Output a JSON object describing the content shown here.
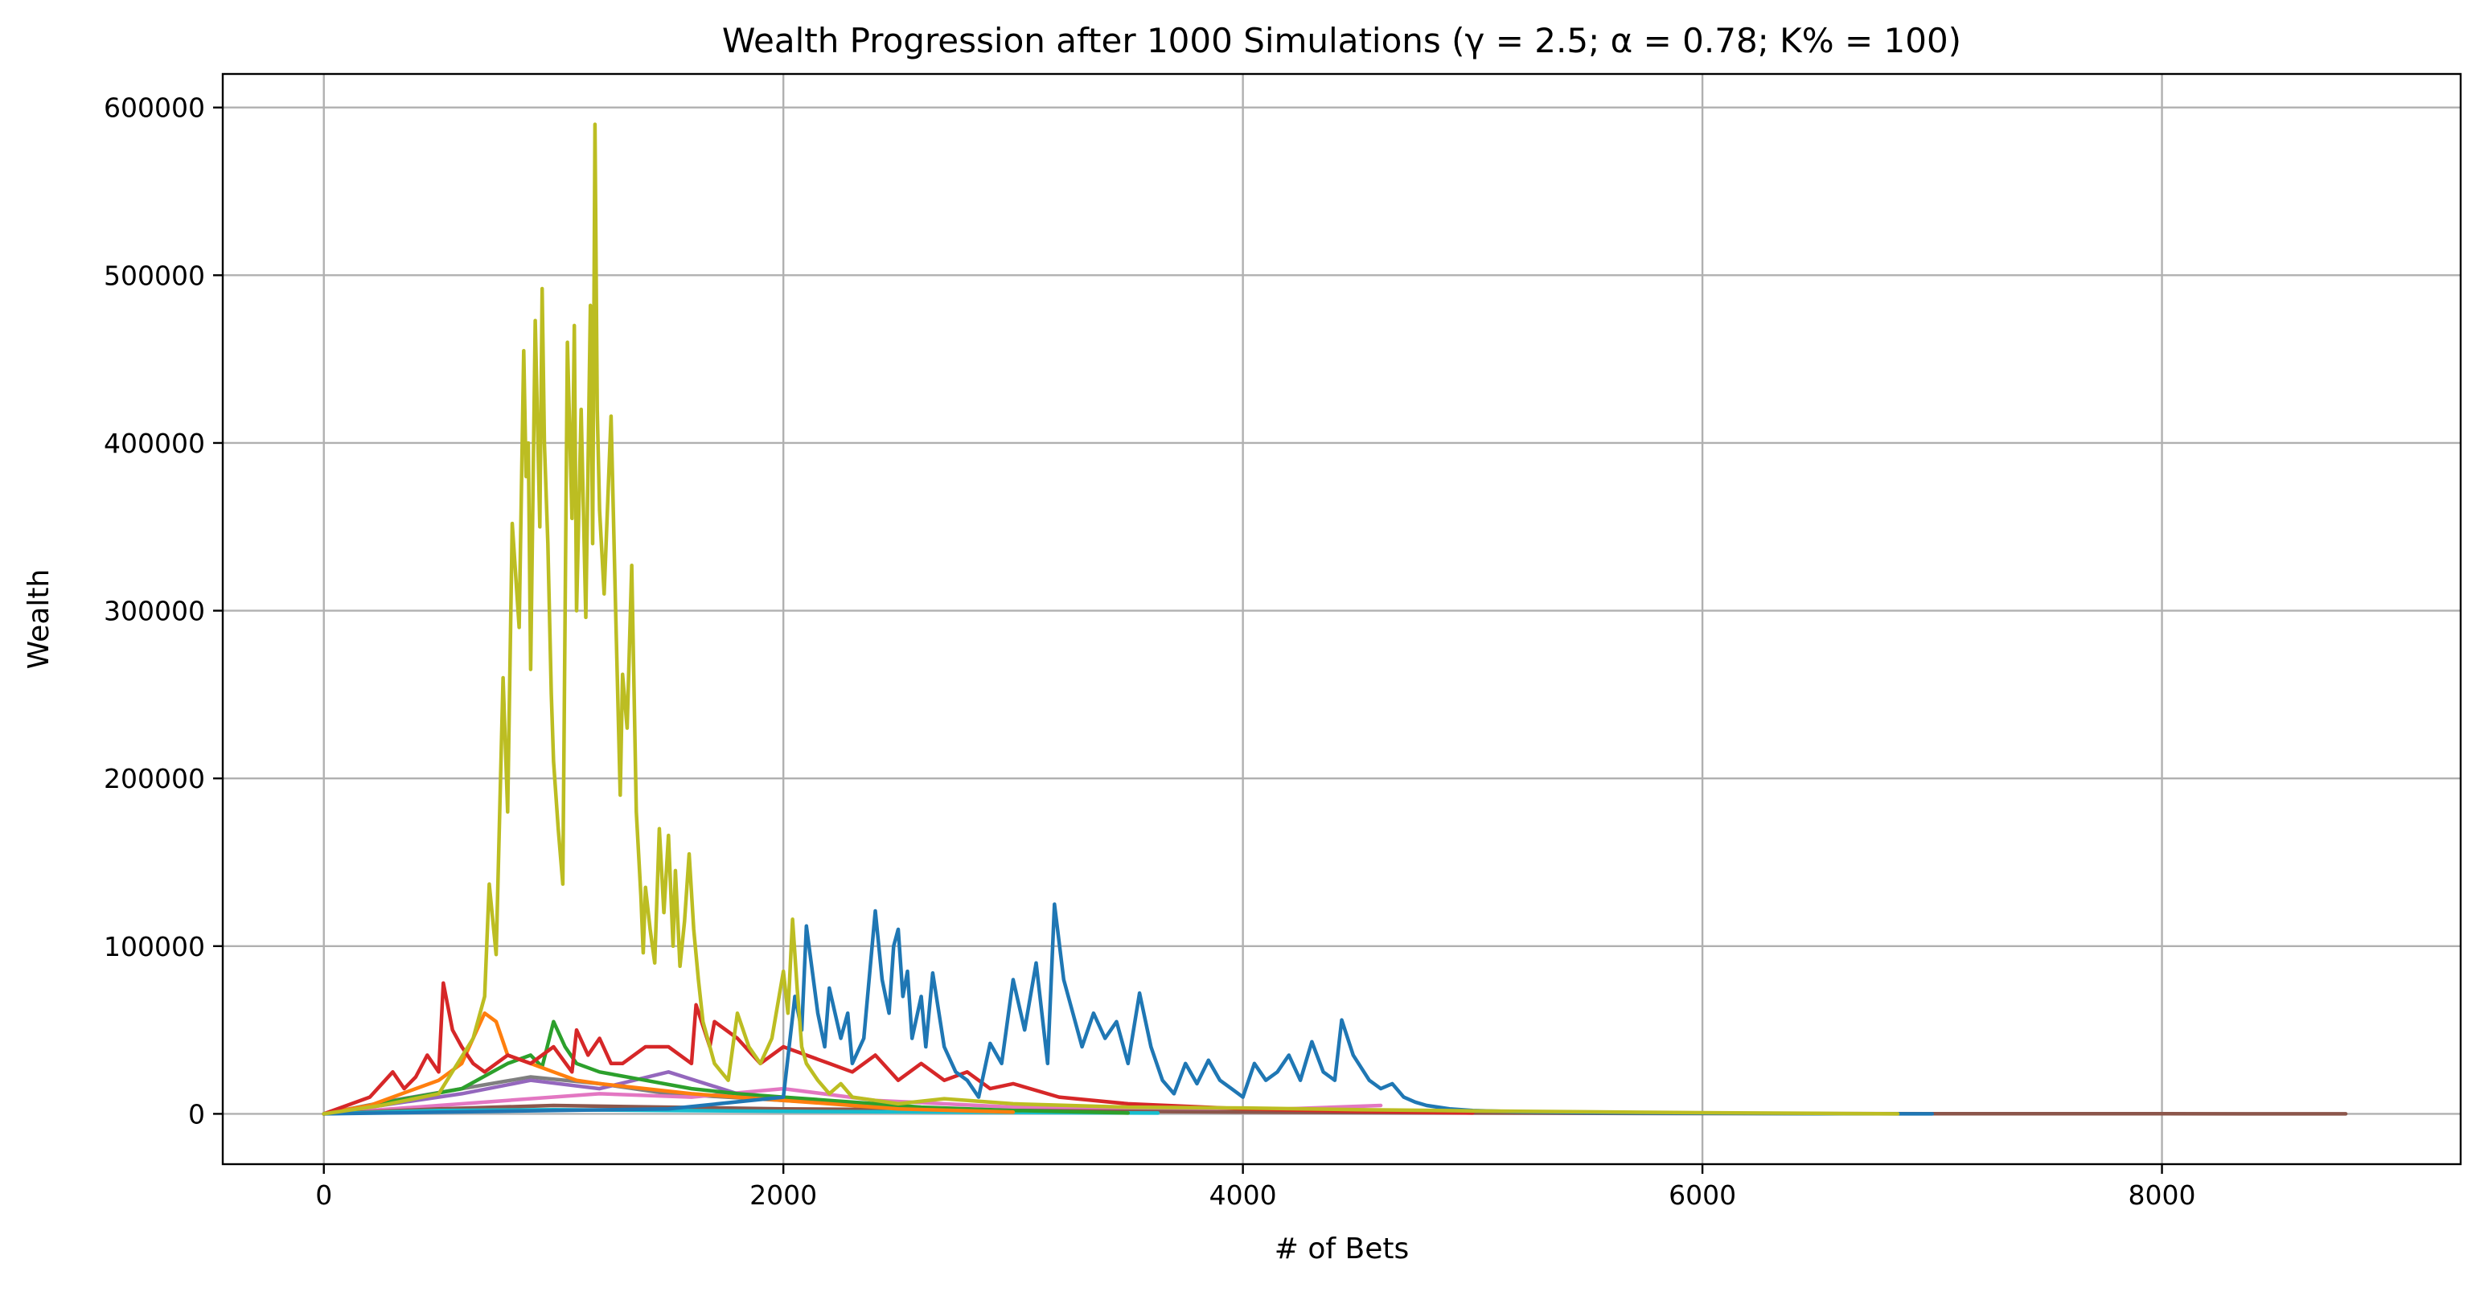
{
  "chart_data": {
    "type": "line",
    "title": "Wealth Progression after 1000 Simulations (γ = 2.5; α = 0.78; K% = 100)",
    "xlabel": "# of Bets",
    "ylabel": "Wealth",
    "xlim": [
      -440,
      9300
    ],
    "ylim": [
      -30000,
      620000
    ],
    "xticks": [
      0,
      2000,
      4000,
      6000,
      8000
    ],
    "yticks": [
      0,
      100000,
      200000,
      300000,
      400000,
      500000,
      600000
    ],
    "xtick_labels": [
      "0",
      "2000",
      "4000",
      "6000",
      "8000"
    ],
    "ytick_labels": [
      "0",
      "100000",
      "200000",
      "300000",
      "400000",
      "500000",
      "600000"
    ],
    "grid": true,
    "legend": "none",
    "series": [
      {
        "color": "#bcbd22",
        "x": [
          0,
          250,
          500,
          650,
          700,
          720,
          750,
          780,
          800,
          820,
          850,
          870,
          880,
          890,
          900,
          920,
          940,
          950,
          960,
          975,
          990,
          1000,
          1020,
          1040,
          1060,
          1080,
          1090,
          1100,
          1120,
          1140,
          1160,
          1170,
          1180,
          1190,
          1200,
          1220,
          1250,
          1270,
          1290,
          1300,
          1320,
          1340,
          1360,
          1380,
          1390,
          1400,
          1420,
          1440,
          1460,
          1480,
          1500,
          1520,
          1530,
          1550,
          1570,
          1590,
          1610,
          1630,
          1650,
          1670,
          1700,
          1730,
          1760,
          1800,
          1850,
          1900,
          1950,
          2000,
          2020,
          2040,
          2060,
          2080,
          2100,
          2150,
          2200,
          2250,
          2300,
          2400,
          2500,
          2700,
          3000,
          3500,
          4000,
          4500,
          5000,
          5500,
          6000,
          6500,
          6850
        ],
        "y": [
          0,
          5000,
          12000,
          45000,
          70000,
          137000,
          95000,
          260000,
          180000,
          352000,
          290000,
          455000,
          380000,
          400000,
          265000,
          473000,
          350000,
          492000,
          400000,
          340000,
          250000,
          210000,
          170000,
          137000,
          460000,
          355000,
          470000,
          300000,
          420000,
          296000,
          482000,
          340000,
          590000,
          420000,
          360000,
          310000,
          416000,
          300000,
          190000,
          262000,
          230000,
          327000,
          180000,
          130000,
          96000,
          135000,
          110000,
          90000,
          170000,
          120000,
          166000,
          100000,
          145000,
          88000,
          115000,
          155000,
          110000,
          80000,
          55000,
          45000,
          30000,
          25000,
          20000,
          60000,
          40000,
          30000,
          45000,
          85000,
          60000,
          116000,
          75000,
          40000,
          30000,
          20000,
          12000,
          18000,
          10000,
          8000,
          6000,
          9000,
          6000,
          4000,
          3500,
          2500,
          1800,
          1200,
          700,
          300,
          0
        ]
      },
      {
        "color": "#1f77b4",
        "x": [
          0,
          1500,
          2000,
          2050,
          2080,
          2100,
          2150,
          2180,
          2200,
          2250,
          2280,
          2300,
          2350,
          2400,
          2430,
          2460,
          2480,
          2500,
          2520,
          2540,
          2560,
          2600,
          2620,
          2650,
          2700,
          2750,
          2800,
          2850,
          2900,
          2950,
          3000,
          3050,
          3100,
          3150,
          3180,
          3220,
          3260,
          3300,
          3350,
          3400,
          3450,
          3500,
          3550,
          3600,
          3650,
          3700,
          3750,
          3800,
          3850,
          3900,
          3950,
          4000,
          4050,
          4100,
          4150,
          4200,
          4250,
          4300,
          4350,
          4400,
          4430,
          4480,
          4550,
          4600,
          4650,
          4700,
          4750,
          4800,
          4900,
          5000,
          5200,
          5500,
          6000,
          6500,
          6900,
          7000
        ],
        "y": [
          0,
          3000,
          10000,
          70000,
          50000,
          112000,
          60000,
          40000,
          75000,
          45000,
          60000,
          30000,
          45000,
          121000,
          80000,
          60000,
          100000,
          110000,
          70000,
          85000,
          45000,
          70000,
          40000,
          84000,
          40000,
          25000,
          20000,
          10000,
          42000,
          30000,
          80000,
          50000,
          90000,
          30000,
          125000,
          80000,
          60000,
          40000,
          60000,
          45000,
          55000,
          30000,
          72000,
          40000,
          20000,
          12000,
          30000,
          18000,
          32000,
          20000,
          15000,
          10000,
          30000,
          20000,
          25000,
          35000,
          20000,
          43000,
          25000,
          20000,
          56000,
          35000,
          20000,
          15000,
          18000,
          10000,
          7000,
          5000,
          3000,
          2000,
          1200,
          700,
          300,
          100,
          0,
          0
        ]
      },
      {
        "color": "#d62728",
        "x": [
          0,
          100,
          200,
          300,
          350,
          400,
          450,
          500,
          520,
          560,
          600,
          650,
          700,
          800,
          900,
          1000,
          1080,
          1100,
          1150,
          1200,
          1250,
          1300,
          1400,
          1500,
          1600,
          1620,
          1680,
          1700,
          1800,
          1900,
          2000,
          2100,
          2200,
          2300,
          2400,
          2500,
          2600,
          2700,
          2800,
          2900,
          3000,
          3200,
          3500,
          4000,
          4500,
          5000
        ],
        "y": [
          0,
          5000,
          10000,
          25000,
          15000,
          22000,
          35000,
          25000,
          78000,
          50000,
          40000,
          30000,
          25000,
          35000,
          30000,
          40000,
          25000,
          50000,
          35000,
          45000,
          30000,
          30000,
          40000,
          40000,
          30000,
          65000,
          40000,
          55000,
          45000,
          30000,
          40000,
          35000,
          30000,
          25000,
          35000,
          20000,
          30000,
          20000,
          25000,
          15000,
          18000,
          10000,
          6000,
          3000,
          1500,
          500
        ]
      },
      {
        "color": "#ff7f0e",
        "x": [
          0,
          200,
          400,
          500,
          600,
          650,
          700,
          750,
          800,
          900,
          1000,
          1100,
          1200,
          1400,
          1600,
          1800,
          2000,
          2200,
          2500,
          3000
        ],
        "y": [
          0,
          5000,
          15000,
          20000,
          30000,
          45000,
          60000,
          55000,
          35000,
          30000,
          25000,
          20000,
          18000,
          15000,
          12000,
          10000,
          8000,
          6000,
          3000,
          1000
        ]
      },
      {
        "color": "#2ca02c",
        "x": [
          0,
          200,
          400,
          600,
          800,
          900,
          950,
          1000,
          1050,
          1100,
          1200,
          1400,
          1600,
          1800,
          2000,
          2200,
          2400,
          2600,
          3000,
          3500
        ],
        "y": [
          0,
          5000,
          10000,
          15000,
          30000,
          35000,
          28000,
          55000,
          40000,
          30000,
          25000,
          20000,
          15000,
          12000,
          10000,
          8000,
          6000,
          4000,
          2000,
          500
        ]
      },
      {
        "color": "#17becf",
        "x": [
          0,
          500,
          1000,
          1500,
          2000,
          2500,
          3000,
          3630
        ],
        "y": [
          0,
          2000,
          2500,
          2000,
          1500,
          1200,
          800,
          500
        ]
      },
      {
        "color": "#8c564b",
        "x": [
          0,
          500,
          1000,
          1500,
          2000,
          3000,
          4000,
          5000,
          6000,
          7000,
          8000,
          8800
        ],
        "y": [
          0,
          3000,
          5000,
          4000,
          3000,
          2000,
          1000,
          500,
          200,
          100,
          50,
          0
        ]
      },
      {
        "color": "#9467bd",
        "x": [
          0,
          300,
          600,
          900,
          1200,
          1500,
          1800,
          2100,
          2500,
          3000
        ],
        "y": [
          0,
          6000,
          12000,
          20000,
          15000,
          25000,
          12000,
          8000,
          4000,
          1000
        ]
      },
      {
        "color": "#e377c2",
        "x": [
          0,
          400,
          800,
          1200,
          1600,
          2000,
          2400,
          3000,
          4000,
          4600
        ],
        "y": [
          0,
          4000,
          8000,
          12000,
          10000,
          15000,
          8000,
          4000,
          2000,
          5000
        ]
      },
      {
        "color": "#7f7f7f",
        "x": [
          0,
          300,
          600,
          900,
          1200,
          1500,
          2000,
          2500,
          3000
        ],
        "y": [
          0,
          8000,
          15000,
          22000,
          18000,
          12000,
          8000,
          4000,
          1500
        ]
      }
    ]
  }
}
